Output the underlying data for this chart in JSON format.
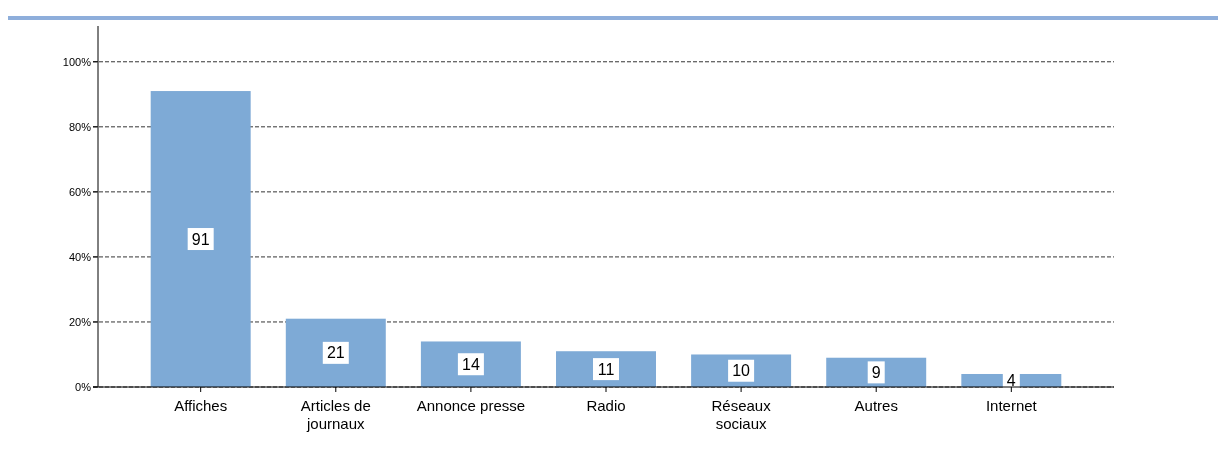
{
  "chart_data": {
    "type": "bar",
    "categories": [
      "Affiches",
      "Articles de\njournaux",
      "Annonce presse",
      "Radio",
      "Réseaux\nsociaux",
      "Autres",
      "Internet"
    ],
    "values": [
      91,
      21,
      14,
      11,
      10,
      9,
      4
    ],
    "color": "#7eaad6",
    "ylim": [
      0,
      111
    ],
    "yticks": [
      {
        "value": 0,
        "label": "0%"
      },
      {
        "value": 20,
        "label": "20%"
      },
      {
        "value": 40,
        "label": "40%"
      },
      {
        "value": 60,
        "label": "60%"
      },
      {
        "value": 80,
        "label": "80%"
      },
      {
        "value": 100,
        "label": "100%"
      }
    ],
    "grid": "y",
    "line_style": "dashed",
    "data_labels": true
  }
}
